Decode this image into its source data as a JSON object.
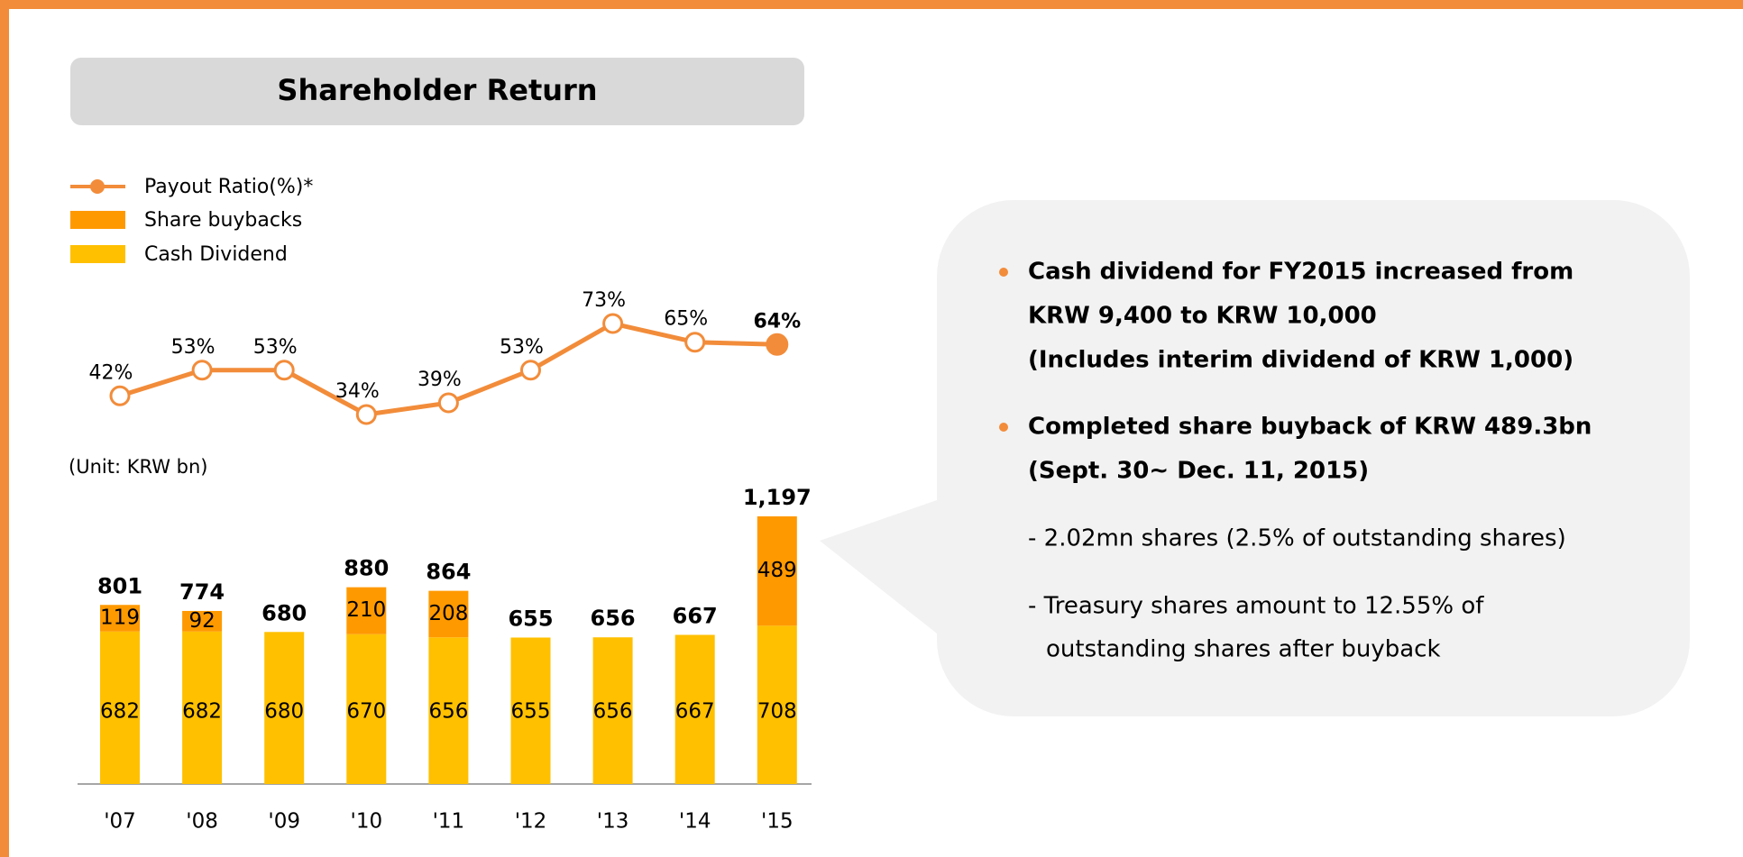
{
  "title": "Shareholder Return",
  "chart_data": [
    {
      "type": "line",
      "categories": [
        "'07",
        "'08",
        "'09",
        "'10",
        "'11",
        "'12",
        "'13",
        "'14",
        "'15"
      ],
      "series": [
        {
          "name": "Payout Ratio(%)*",
          "color": "#f28c3a",
          "values": [
            42,
            53,
            53,
            34,
            39,
            53,
            73,
            65,
            64
          ],
          "value_labels": [
            "42%",
            "53%",
            "53%",
            "34%",
            "39%",
            "53%",
            "73%",
            "65%",
            "64%"
          ]
        }
      ],
      "highlight_index": 8
    },
    {
      "type": "bar",
      "stacked": true,
      "unit_label": "(Unit: KRW bn)",
      "categories": [
        "'07",
        "'08",
        "'09",
        "'10",
        "'11",
        "'12",
        "'13",
        "'14",
        "'15"
      ],
      "series": [
        {
          "name": "Share buybacks",
          "color": "#ff9900",
          "values": [
            119,
            92,
            null,
            210,
            208,
            null,
            null,
            null,
            489
          ]
        },
        {
          "name": "Cash Dividend",
          "color": "#ffc000",
          "values": [
            682,
            682,
            680,
            670,
            656,
            655,
            656,
            667,
            708
          ]
        }
      ],
      "totals": [
        801,
        774,
        680,
        880,
        864,
        655,
        656,
        667,
        1197
      ],
      "total_labels": [
        "801",
        "774",
        "680",
        "880",
        "864",
        "655",
        "656",
        "667",
        "1,197"
      ]
    }
  ],
  "panel": {
    "bullets": [
      [
        "Cash dividend for FY2015 increased from",
        "KRW 9,400 to KRW 10,000",
        "(Includes interim dividend of KRW 1,000)"
      ],
      [
        "Completed share buyback of KRW 489.3bn",
        "(Sept. 30~ Dec. 11, 2015)"
      ]
    ],
    "notes": [
      [
        "- 2.02mn shares (2.5% of outstanding shares)"
      ],
      [
        "- Treasury shares amount to 12.55% of",
        "outstanding shares after buyback"
      ]
    ]
  }
}
